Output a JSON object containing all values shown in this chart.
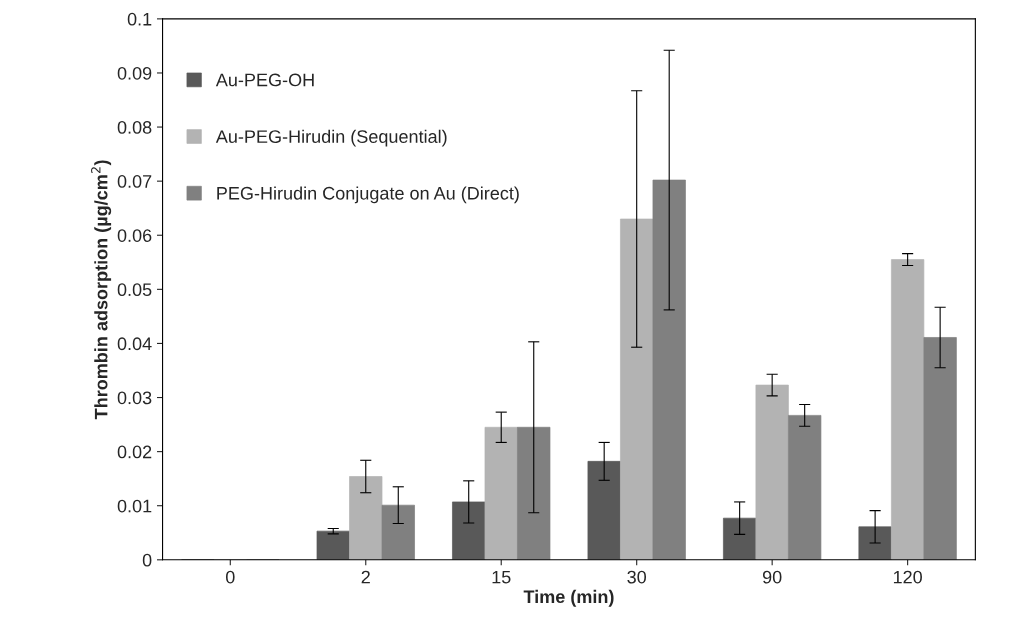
{
  "chart_data": {
    "type": "bar",
    "xlabel": "Time (min)",
    "ylabel": "Thrombin adsorption (µg/cm$^{2}$)",
    "categories": [
      "0",
      "2",
      "15",
      "30",
      "90",
      "120"
    ],
    "series": [
      {
        "name": "Au-PEG-OH",
        "color": "#595959",
        "values": [
          0,
          0.0053,
          0.0107,
          0.0182,
          0.0077,
          0.0061
        ],
        "errors": [
          null,
          0.0005,
          0.0039,
          0.0035,
          0.003,
          0.003
        ]
      },
      {
        "name": "Au-PEG-Hirudin (Sequential)",
        "color": "#b3b3b3",
        "values": [
          0,
          0.0154,
          0.0245,
          0.063,
          0.0323,
          0.0555
        ],
        "errors": [
          null,
          0.003,
          0.0028,
          0.0237,
          0.002,
          0.0011
        ]
      },
      {
        "name": "PEG-Hirudin Conjugate on Au (Direct)",
        "color": "#808080",
        "values": [
          0,
          0.0101,
          0.0245,
          0.0702,
          0.0267,
          0.0411
        ],
        "errors": [
          null,
          0.0034,
          0.0158,
          0.024,
          0.002,
          0.0056
        ]
      }
    ],
    "ylim": [
      0,
      0.1
    ],
    "yticks": [
      0,
      0.01,
      0.02,
      0.03,
      0.04,
      0.05,
      0.06,
      0.07,
      0.08,
      0.09,
      0.1
    ],
    "grid": false,
    "legend": "top left"
  }
}
